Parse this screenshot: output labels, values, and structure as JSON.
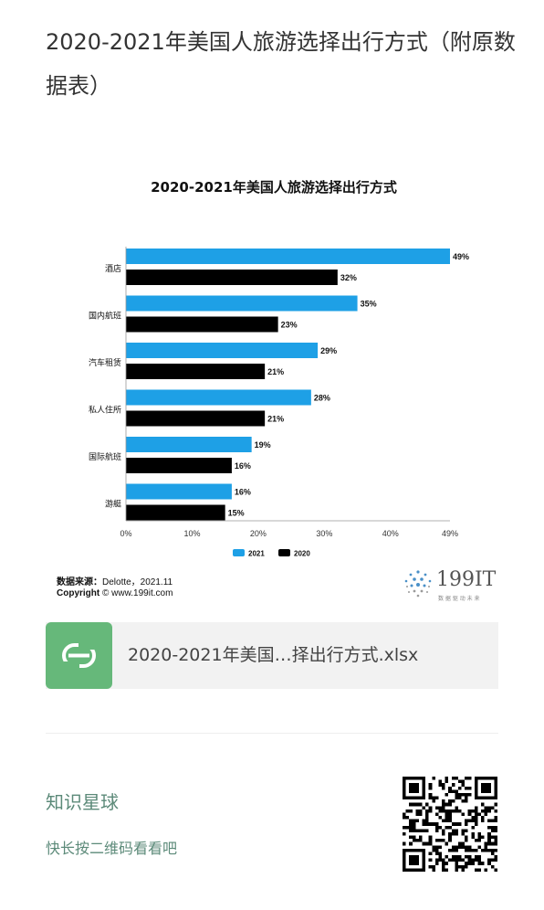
{
  "page": {
    "title": "2020-2021年美国人旅游选择出行方式（附原数据表）"
  },
  "chart_data": {
    "type": "bar",
    "orientation": "horizontal",
    "title": "2020-2021年美国人旅游选择出行方式",
    "categories": [
      "酒店",
      "国内航班",
      "汽车租赁",
      "私人住所",
      "国际航班",
      "游艇"
    ],
    "series": [
      {
        "name": "2021",
        "color": "#1ea0e6",
        "values": [
          49,
          35,
          29,
          28,
          19,
          16
        ]
      },
      {
        "name": "2020",
        "color": "#000000",
        "values": [
          32,
          23,
          21,
          21,
          16,
          15
        ]
      }
    ],
    "xlim": [
      0,
      49
    ],
    "xticks": [
      "0%",
      "10%",
      "20%",
      "30%",
      "40%",
      "49%"
    ],
    "xtick_values": [
      0,
      10,
      20,
      30,
      40,
      49
    ],
    "value_suffix": "%",
    "legend_position": "bottom",
    "grid": false
  },
  "source": {
    "label": "数据来源：",
    "text": "Delotte，2021.11",
    "copyright_label": "Copyright",
    "copyright_text": "© www.199it.com"
  },
  "logo": {
    "text": "199IT",
    "tagline": "数 据 驱 动 未 来"
  },
  "file": {
    "icon_letter": "S",
    "name": "2020-2021年美国…择出行方式.xlsx"
  },
  "planet": {
    "title": "知识星球",
    "subtitle": "快长按二维码看看吧"
  }
}
